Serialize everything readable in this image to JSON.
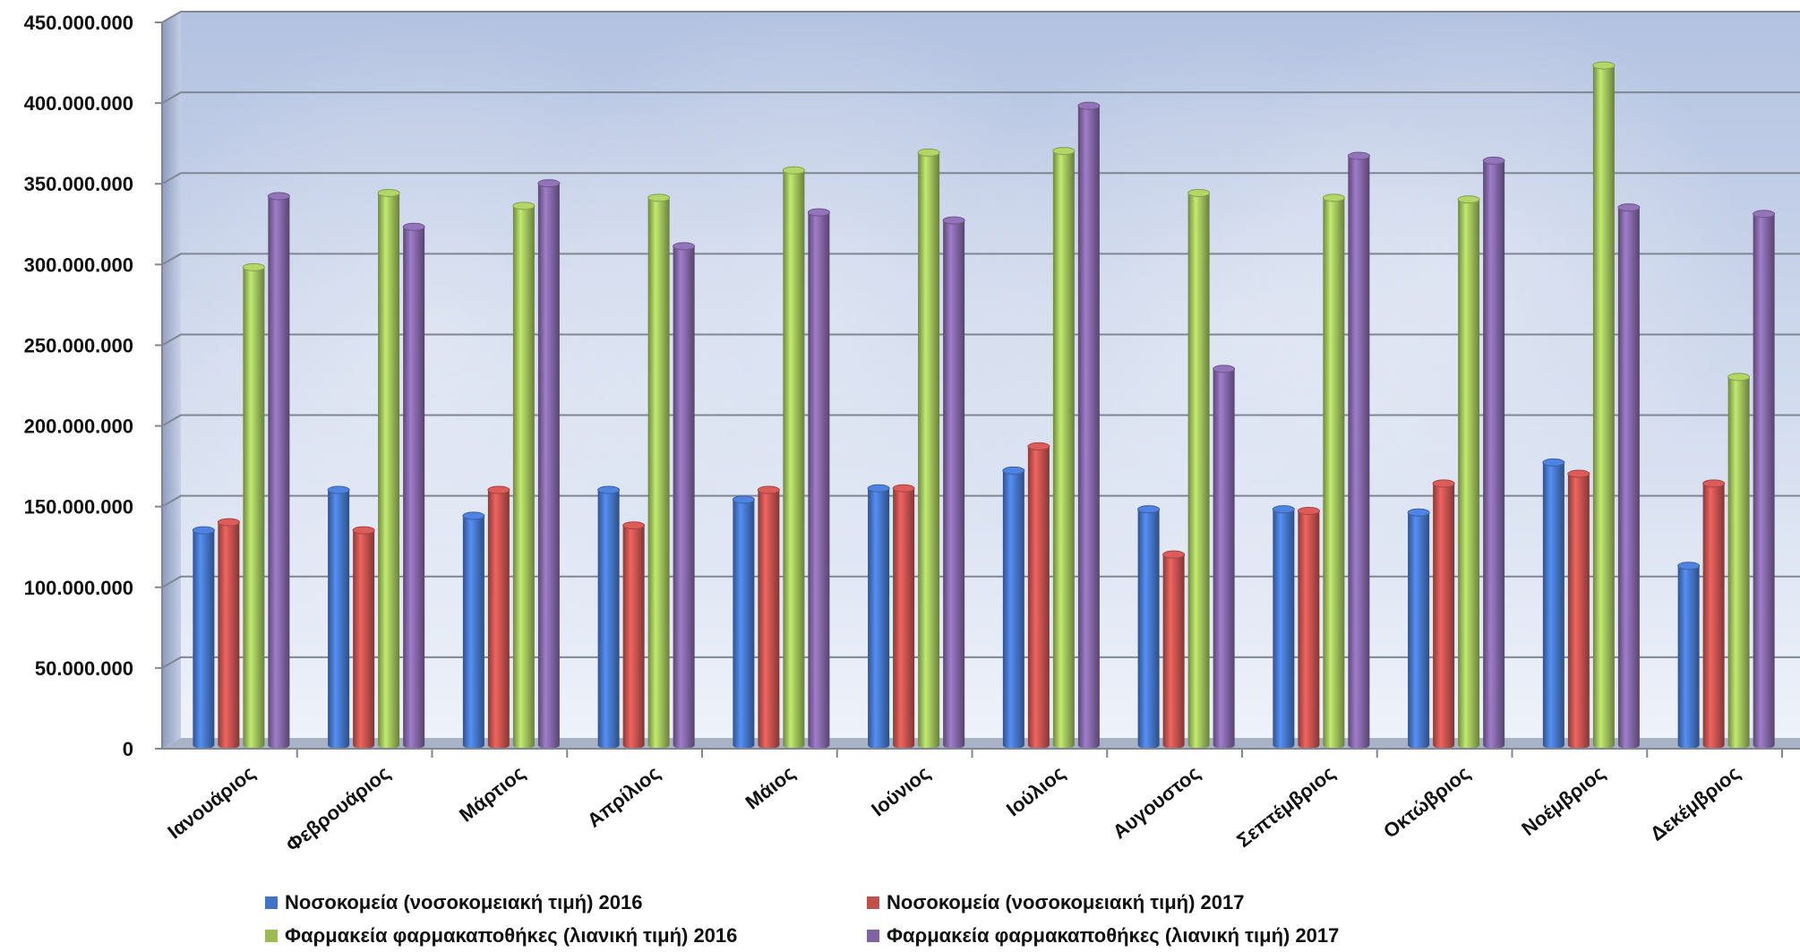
{
  "chart_data": {
    "type": "bar",
    "categories": [
      "Ιανουάριος",
      "Φεβρουάριος",
      "Μάρτιος",
      "Απρίλιος",
      "Μάιος",
      "Ιούνιος",
      "Ιούλιος",
      "Αυγουστος",
      "Σεπτέμβριος",
      "Οκτώβριος",
      "Νοέμβριος",
      "Δεκέμβριος"
    ],
    "series": [
      {
        "name": "Νοσοκομεία  (νοσοκομειακή τιμή) 2016",
        "color": "#4472c4",
        "values": [
          132000000,
          157000000,
          141000000,
          157000000,
          151000000,
          158000000,
          169000000,
          145000000,
          145000000,
          143000000,
          174000000,
          110000000
        ]
      },
      {
        "name": "Νοσοκομεία  (νοσοκομειακή τιμή) 2017",
        "color": "#c0504d",
        "values": [
          137000000,
          132000000,
          157000000,
          135000000,
          157000000,
          158000000,
          184000000,
          117000000,
          144000000,
          161000000,
          167000000,
          161000000
        ]
      },
      {
        "name": "Φαρμακεία φαρμακαποθήκες (λιανική τιμή) 2016",
        "color": "#9bbb59",
        "values": [
          295000000,
          341000000,
          333000000,
          338000000,
          355000000,
          366000000,
          367000000,
          341000000,
          338000000,
          337000000,
          420000000,
          227000000
        ]
      },
      {
        "name": "Φαρμακεία φαρμακαποθήκες (λιανική τιμή) 2017",
        "color": "#8064a2",
        "values": [
          339000000,
          320000000,
          347000000,
          308000000,
          329000000,
          324000000,
          395000000,
          232000000,
          364000000,
          361000000,
          332000000,
          328000000
        ]
      }
    ],
    "yticks": [
      "0",
      "50.000.000",
      "100.000.000",
      "150.000.000",
      "200.000.000",
      "250.000.000",
      "300.000.000",
      "350.000.000",
      "400.000.000",
      "450.000.000"
    ],
    "ylim": [
      0,
      450000000
    ],
    "grid": true,
    "legend_position": "bottom",
    "title": "",
    "xlabel": "",
    "ylabel": ""
  }
}
